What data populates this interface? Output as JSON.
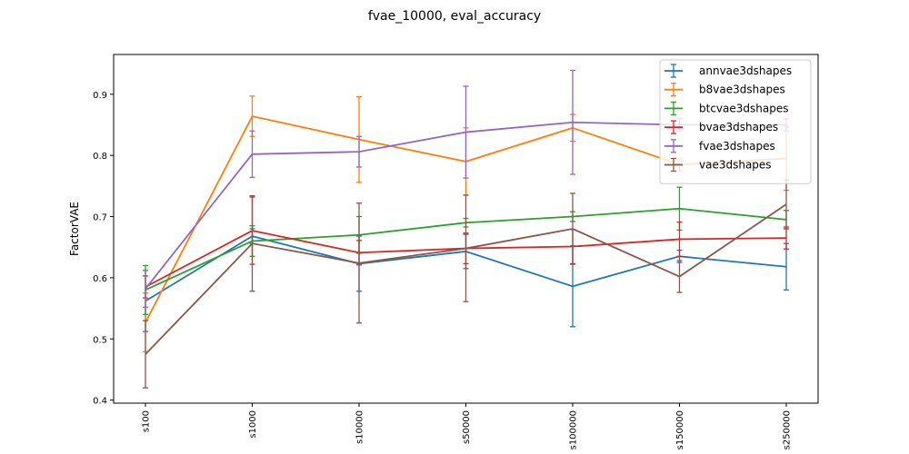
{
  "chart_data": {
    "type": "line",
    "title": "fvae_10000, eval_accuracy",
    "xlabel": "",
    "ylabel": "FactorVAE",
    "categories": [
      "s100",
      "s1000",
      "s10000",
      "s50000",
      "s100000",
      "s150000",
      "s250000"
    ],
    "ylim": [
      0.395,
      0.965
    ],
    "yticks": [
      0.4,
      0.5,
      0.6,
      0.7,
      0.8,
      0.9
    ],
    "grid": false,
    "legend_position": "top-right",
    "series": [
      {
        "name": "annvae3dshapes",
        "color": "#1f77b4",
        "values": [
          0.562,
          0.668,
          0.623,
          0.643,
          0.586,
          0.635,
          0.618
        ],
        "errors": [
          0.05,
          0.012,
          0.045,
          0.028,
          0.066,
          0.01,
          0.038
        ]
      },
      {
        "name": "b8vae3dshapes",
        "color": "#ff7f0e",
        "values": [
          0.527,
          0.864,
          0.826,
          0.79,
          0.845,
          0.785,
          0.795
        ],
        "errors": [
          0.048,
          0.033,
          0.07,
          0.055,
          0.022,
          0.01,
          0.052
        ]
      },
      {
        "name": "btcvae3dshapes",
        "color": "#2ca02c",
        "values": [
          0.58,
          0.66,
          0.67,
          0.69,
          0.7,
          0.713,
          0.695
        ],
        "errors": [
          0.04,
          0.025,
          0.03,
          0.007,
          0.008,
          0.035,
          0.015
        ]
      },
      {
        "name": "bvae3dshapes",
        "color": "#d62728",
        "values": [
          0.585,
          0.677,
          0.641,
          0.648,
          0.651,
          0.663,
          0.665
        ],
        "errors": [
          0.018,
          0.055,
          0.02,
          0.025,
          0.028,
          0.028,
          0.018
        ]
      },
      {
        "name": "fvae3dshapes",
        "color": "#9467bd",
        "values": [
          0.582,
          0.802,
          0.806,
          0.838,
          0.854,
          0.85,
          0.85
        ],
        "errors": [
          0.03,
          0.038,
          0.025,
          0.075,
          0.085,
          0.01,
          0.01
        ]
      },
      {
        "name": "vae3dshapes",
        "color": "#8c564b",
        "values": [
          0.475,
          0.656,
          0.624,
          0.648,
          0.68,
          0.602,
          0.72
        ],
        "errors": [
          0.055,
          0.078,
          0.098,
          0.087,
          0.058,
          0.026,
          0.04
        ]
      }
    ]
  }
}
